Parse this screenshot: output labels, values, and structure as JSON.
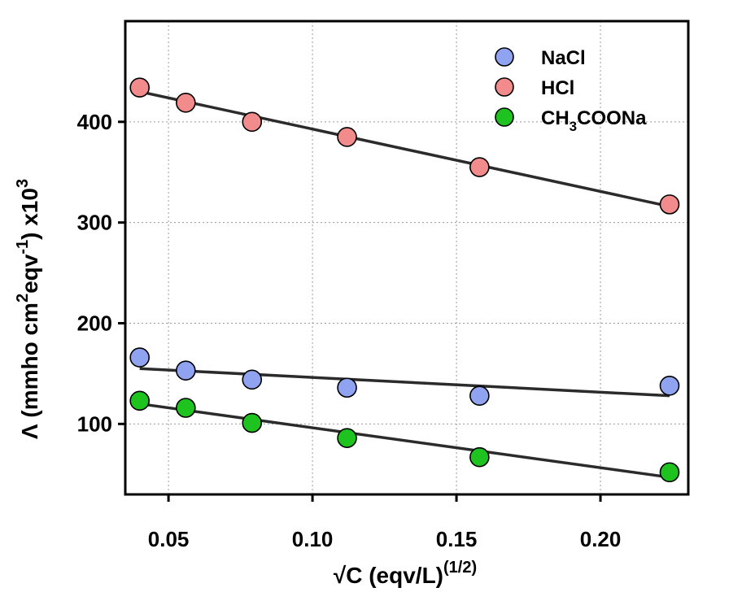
{
  "chart_data": {
    "type": "scatter",
    "xlabel": "√C (eqv/L)",
    "xlabel_sup": "(1/2)",
    "ylabel_parts": [
      "Λ (mmho cm",
      "2",
      "eqv",
      "-1",
      ") x10",
      "3"
    ],
    "xlim": [
      0.035,
      0.2305
    ],
    "ylim": [
      30,
      500
    ],
    "xticks": [
      0.05,
      0.1,
      0.15,
      0.2
    ],
    "xtick_labels": [
      "0.05",
      "0.10",
      "0.15",
      "0.20"
    ],
    "yticks": [
      100,
      200,
      300,
      400
    ],
    "ytick_labels": [
      "100",
      "200",
      "300",
      "400"
    ],
    "grid": true,
    "legend_position": "top-right",
    "x": [
      0.04,
      0.056,
      0.079,
      0.112,
      0.158,
      0.224
    ],
    "series": [
      {
        "name": "NaCl",
        "label_parts": [
          "NaCl"
        ],
        "color": "#8fa3f0",
        "values": [
          166,
          153,
          144,
          136,
          128,
          138
        ],
        "fit": [
          155,
          128
        ]
      },
      {
        "name": "HCl",
        "label_parts": [
          "HCl"
        ],
        "color": "#f28b8b",
        "values": [
          434,
          419,
          400,
          385,
          355,
          318
        ],
        "fit": [
          430,
          316
        ]
      },
      {
        "name": "CH3COONa",
        "label_parts": [
          "CH",
          "3",
          "COONa"
        ],
        "color": "#1fc31f",
        "values": [
          123,
          116,
          101,
          86,
          67,
          52
        ],
        "fit": [
          120,
          47
        ]
      }
    ],
    "fit_color": "#2b2b2b"
  }
}
